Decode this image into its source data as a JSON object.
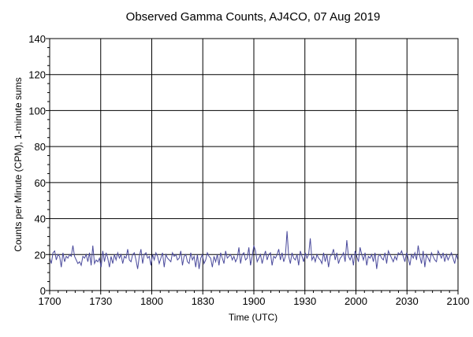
{
  "chart_data": {
    "type": "line",
    "title": "Observed Gamma Counts, AJ4CO, 07 Aug 2019",
    "xlabel": "Time (UTC)",
    "ylabel": "Counts per Minute (CPM), 1-minute sums",
    "x_ticks": [
      "1700",
      "1730",
      "1800",
      "1830",
      "1900",
      "1930",
      "2000",
      "2030",
      "2100"
    ],
    "y_ticks": [
      "0",
      "20",
      "40",
      "60",
      "80",
      "100",
      "120",
      "140"
    ],
    "ylim": [
      0,
      140
    ],
    "x_range_minutes": [
      0,
      240
    ],
    "grid": true,
    "series": [
      {
        "name": "CPM",
        "color": "#4a4a9c",
        "values": [
          18,
          15,
          21,
          22,
          17,
          20,
          19,
          13,
          21,
          16,
          19,
          18,
          20,
          19,
          25,
          19,
          17,
          15,
          16,
          14,
          19,
          18,
          20,
          16,
          21,
          14,
          25,
          15,
          17,
          16,
          18,
          13,
          22,
          16,
          21,
          18,
          13,
          19,
          15,
          20,
          17,
          21,
          18,
          20,
          15,
          19,
          18,
          23,
          17,
          16,
          20,
          21,
          17,
          12,
          19,
          23,
          15,
          20,
          21,
          18,
          19,
          14,
          20,
          17,
          21,
          19,
          15,
          18,
          21,
          13,
          20,
          18,
          17,
          16,
          21,
          19,
          20,
          17,
          18,
          22,
          14,
          19,
          20,
          16,
          15,
          21,
          17,
          19,
          13,
          20,
          12,
          18,
          20,
          15,
          17,
          21,
          19,
          18,
          13,
          19,
          16,
          20,
          14,
          21,
          18,
          15,
          22,
          18,
          19,
          20,
          17,
          19,
          16,
          18,
          24,
          15,
          20,
          21,
          17,
          18,
          24,
          14,
          19,
          25,
          22,
          16,
          18,
          20,
          15,
          19,
          22,
          17,
          20,
          21,
          14,
          19,
          18,
          20,
          23,
          17,
          21,
          16,
          19,
          33,
          19,
          15,
          21,
          18,
          17,
          20,
          14,
          22,
          19,
          16,
          21,
          18,
          20,
          29,
          17,
          19,
          16,
          20,
          18,
          17,
          15,
          21,
          16,
          20,
          13,
          19,
          20,
          23,
          17,
          21,
          15,
          18,
          19,
          21,
          16,
          28,
          19,
          17,
          20,
          14,
          22,
          19,
          16,
          24,
          20,
          17,
          21,
          14,
          19,
          18,
          20,
          16,
          21,
          12,
          19,
          20,
          18,
          17,
          21,
          15,
          22,
          20,
          18,
          16,
          19,
          17,
          21,
          20,
          22,
          19,
          16,
          21,
          18,
          14,
          20,
          18,
          21,
          17,
          25,
          19,
          15,
          22,
          13,
          20,
          18,
          16,
          21,
          19,
          17,
          16,
          22,
          20,
          18,
          21,
          16,
          20,
          17,
          19,
          21,
          18,
          15,
          20,
          17
        ]
      }
    ]
  }
}
